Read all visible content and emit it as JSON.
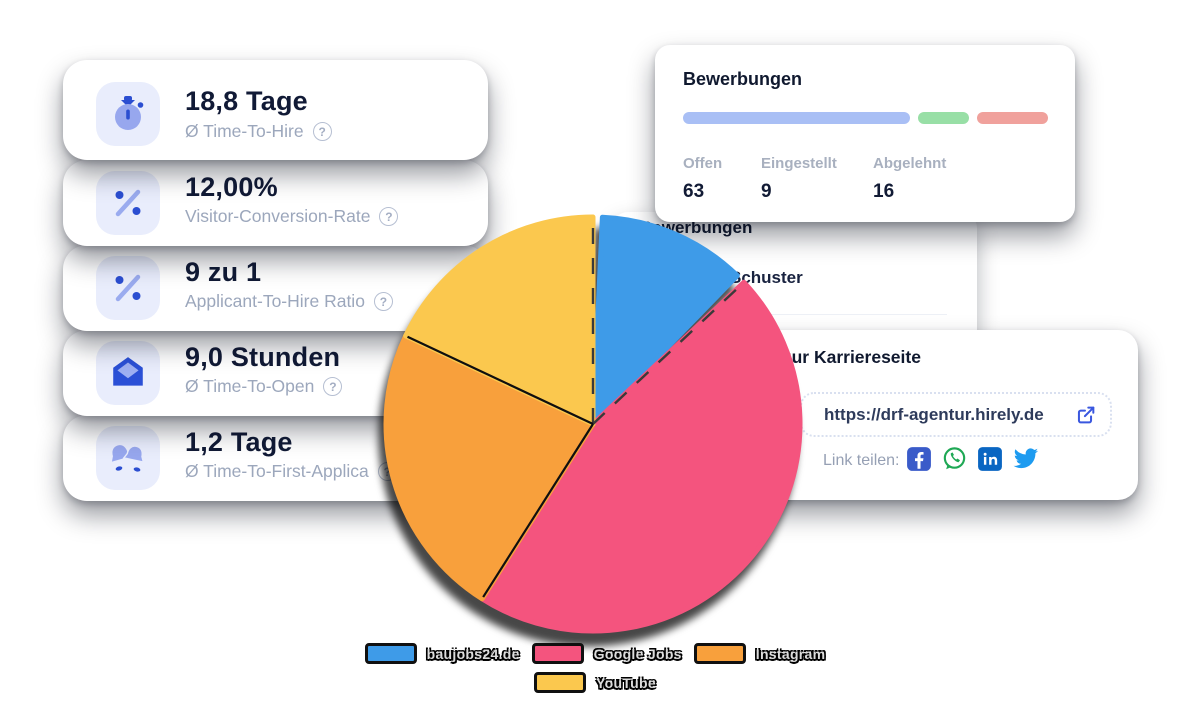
{
  "metrics": {
    "help_glyph": "?",
    "cards": [
      {
        "value": "18,8 Tage",
        "label": "Ø Time-To-Hire",
        "icon": "stopwatch-icon"
      },
      {
        "value": "12,00%",
        "label": "Visitor-Conversion-Rate",
        "icon": "percent-icon"
      },
      {
        "value": "9 zu 1",
        "label": "Applicant-To-Hire Ratio",
        "icon": "percent-icon"
      },
      {
        "value": "9,0 Stunden",
        "label": "Ø Time-To-Open",
        "icon": "mail-open-icon"
      },
      {
        "value": "1,2 Tage",
        "label": "Ø Time-To-First-Applica",
        "icon": "bells-icon"
      }
    ]
  },
  "applications": {
    "title": "Bewerbungen",
    "segments": [
      {
        "label": "Offen",
        "value": "63",
        "color": "#A9BFF5",
        "weight": 230
      },
      {
        "label": "Eingestellt",
        "value": "9",
        "color": "#98DFA6",
        "weight": 52
      },
      {
        "label": "Abgelehnt",
        "value": "16",
        "color": "#F0A19C",
        "weight": 72
      }
    ]
  },
  "applicants_panel": {
    "title": "Bewerbungen",
    "applicant_name": "Schuster"
  },
  "career_page": {
    "title": "Link zur Karriereseite",
    "url": "https://drf-agentur.hirely.de",
    "external_link_icon": "external-link-icon",
    "share_label": "Link teilen:",
    "share_icons": [
      "facebook-icon",
      "whatsapp-icon",
      "linkedin-icon",
      "twitter-icon"
    ]
  },
  "chart_data": {
    "type": "pie",
    "title": "",
    "labels": [
      "baujobs24.de",
      "Google Jobs",
      "Instagram",
      "YouTube"
    ],
    "values": [
      13,
      46,
      23,
      18
    ],
    "colors": [
      "#3E9BE8",
      "#F4547E",
      "#F8A03C",
      "#FBC84E"
    ],
    "legend_position": "bottom",
    "highlighted_slice": "baujobs24.de",
    "start_angle_deg": 0,
    "direction": "clockwise"
  },
  "ui_colors": {
    "icon_tile_bg": "#E9EDFC",
    "icon_dark_blue": "#2B4ED1",
    "icon_soft_blue": "#97A7EE",
    "heading_text": "#10192F",
    "muted_text": "#9CA7BC",
    "link_blue": "#3A57DF"
  }
}
